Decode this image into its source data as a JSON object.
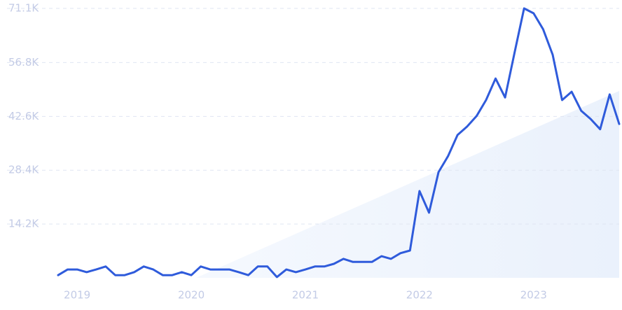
{
  "chart_data": {
    "type": "line",
    "categories": [
      null,
      null,
      "2019",
      null,
      null,
      null,
      null,
      null,
      null,
      null,
      null,
      null,
      null,
      null,
      "2020",
      null,
      null,
      null,
      null,
      null,
      null,
      null,
      null,
      null,
      null,
      null,
      "2021",
      null,
      null,
      null,
      null,
      null,
      null,
      null,
      null,
      null,
      null,
      null,
      "2022",
      null,
      null,
      null,
      null,
      null,
      null,
      null,
      null,
      null,
      null,
      null,
      "2023",
      null,
      null,
      null,
      null,
      null,
      null,
      null,
      null,
      null
    ],
    "series": [
      {
        "color": "#2f5bdb",
        "values": [
          0.7,
          2.2,
          2.2,
          1.5,
          2.2,
          3.0,
          0.7,
          0.7,
          1.5,
          3.0,
          2.2,
          0.7,
          0.7,
          1.5,
          0.7,
          3.0,
          2.2,
          2.2,
          2.2,
          1.5,
          0.7,
          3.0,
          3.0,
          0.2,
          2.2,
          1.5,
          2.2,
          3.0,
          3.0,
          3.7,
          5.0,
          4.2,
          4.2,
          4.2,
          5.7,
          5.0,
          6.5,
          7.2,
          22.9,
          17.2,
          27.9,
          32.1,
          37.7,
          39.9,
          42.7,
          46.9,
          52.6,
          47.6,
          59.5,
          71.1,
          69.8,
          65.6,
          58.9,
          46.9,
          49.1,
          44.1,
          41.9,
          39.2,
          48.4,
          40.6
        ]
      }
    ],
    "ylim": [
      0,
      71.1
    ],
    "yticks": [
      {
        "value": 14.2,
        "label": "14.2K"
      },
      {
        "value": 28.4,
        "label": "28.4K"
      },
      {
        "value": 42.6,
        "label": "42.6K"
      },
      {
        "value": 56.8,
        "label": "56.8K"
      },
      {
        "value": 71.1,
        "label": "71.1K"
      }
    ],
    "grid": true
  }
}
